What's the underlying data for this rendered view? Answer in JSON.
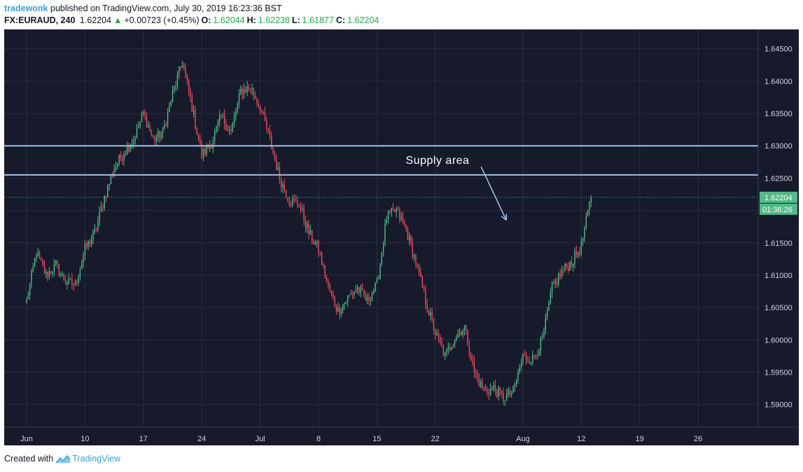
{
  "header": {
    "author": "tradewonk",
    "published_text": "published on TradingView.com, July 30, 2019 16:23:36 BST",
    "symbol": "FX:EURAUD, 240",
    "last": "1.62204",
    "change_arrow": "▲",
    "change": "+0.00723 (+0.45%)",
    "o_label": "O:",
    "o_value": "1.62044",
    "h_label": "H:",
    "h_value": "1.62238",
    "l_label": "L:",
    "l_value": "1.61877",
    "c_label": "C:",
    "c_value": "1.62204"
  },
  "footer": {
    "created_with": "Created with",
    "brand": "TradingView"
  },
  "colors": {
    "background": "#161a2b",
    "grid": "#2a2e3f",
    "up": "#53b987",
    "down": "#eb4d5c",
    "supply_line": "#a4c4e8",
    "last_price_badge": "#53b987",
    "axis_text": "#d1d4dc",
    "annotation": "#ffffff"
  },
  "chart_data": {
    "type": "candlestick",
    "symbol": "FX:EURAUD",
    "interval": "240",
    "ylim": [
      1.5865,
      1.648
    ],
    "y_ticks": [
      1.59,
      1.595,
      1.6,
      1.605,
      1.61,
      1.615,
      1.62,
      1.625,
      1.63,
      1.635,
      1.64,
      1.645
    ],
    "y_tick_labels": [
      "1.59000",
      "1.59500",
      "1.60000",
      "1.60500",
      "1.61000",
      "1.61500",
      "1.62000",
      "1.62500",
      "1.63000",
      "1.63500",
      "1.64000",
      "1.64500"
    ],
    "x_ticks": [
      "Jun",
      "10",
      "17",
      "24",
      "Jul",
      "8",
      "15",
      "22",
      "Aug",
      "12",
      "19",
      "26"
    ],
    "x_tick_index": [
      0,
      6,
      12,
      18,
      24,
      30,
      36,
      42,
      51,
      57,
      63,
      69
    ],
    "last_price": 1.62204,
    "last_price_label": "1.62204",
    "countdown": "01:36:26",
    "supply_zone": {
      "top": 1.63,
      "bottom": 1.6255,
      "label": "Supply area"
    },
    "forecast_arrow": {
      "from": {
        "day_index": 46.7,
        "price": 1.6268
      },
      "to": {
        "day_index": 49.3,
        "price": 1.6185
      }
    },
    "daily_path": [
      [
        0,
        1.606
      ],
      [
        1,
        1.6135
      ],
      [
        2,
        1.61
      ],
      [
        3,
        1.6115
      ],
      [
        4,
        1.609
      ],
      [
        5,
        1.6085
      ],
      [
        6,
        1.614
      ],
      [
        7,
        1.6165
      ],
      [
        8,
        1.622
      ],
      [
        9,
        1.6265
      ],
      [
        10,
        1.629
      ],
      [
        11,
        1.631
      ],
      [
        12,
        1.635
      ],
      [
        13,
        1.631
      ],
      [
        14,
        1.632
      ],
      [
        15,
        1.638
      ],
      [
        16,
        1.643
      ],
      [
        17,
        1.636
      ],
      [
        18,
        1.6285
      ],
      [
        19,
        1.6305
      ],
      [
        20,
        1.6345
      ],
      [
        21,
        1.632
      ],
      [
        22,
        1.6385
      ],
      [
        23,
        1.639
      ],
      [
        24,
        1.636
      ],
      [
        25,
        1.631
      ],
      [
        26,
        1.625
      ],
      [
        27,
        1.6215
      ],
      [
        28,
        1.621
      ],
      [
        29,
        1.6165
      ],
      [
        30,
        1.614
      ],
      [
        31,
        1.608
      ],
      [
        32,
        1.6045
      ],
      [
        33,
        1.6065
      ],
      [
        34,
        1.608
      ],
      [
        35,
        1.606
      ],
      [
        36,
        1.6085
      ],
      [
        37,
        1.619
      ],
      [
        38,
        1.62
      ],
      [
        39,
        1.617
      ],
      [
        40,
        1.612
      ],
      [
        41,
        1.606
      ],
      [
        42,
        1.601
      ],
      [
        43,
        1.5975
      ],
      [
        44,
        1.6005
      ],
      [
        45,
        1.602
      ],
      [
        46,
        1.595
      ],
      [
        47,
        1.592
      ],
      [
        48,
        1.5925
      ],
      [
        49,
        1.591
      ],
      [
        50,
        1.592
      ],
      [
        51,
        1.5975
      ],
      [
        52,
        1.597
      ],
      [
        53,
        1.6
      ],
      [
        54,
        1.608
      ],
      [
        55,
        1.6105
      ],
      [
        56,
        1.612
      ],
      [
        57,
        1.6145
      ],
      [
        58,
        1.622
      ]
    ]
  }
}
